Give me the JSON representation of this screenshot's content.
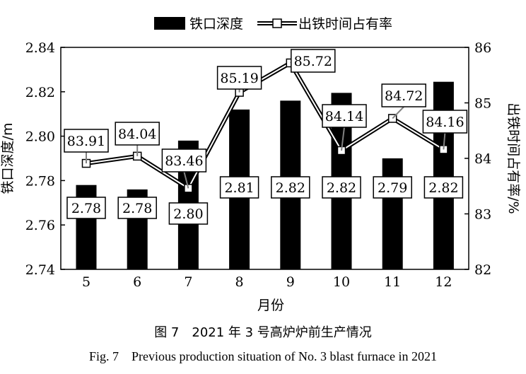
{
  "chart_data": {
    "type": "bar+line",
    "categories": [
      "5",
      "6",
      "7",
      "8",
      "9",
      "10",
      "11",
      "12"
    ],
    "bar_series": {
      "name": "铁口深度",
      "values": [
        2.778,
        2.776,
        2.798,
        2.812,
        2.816,
        2.8195,
        2.79,
        2.8245
      ],
      "labels": [
        "2.78",
        "2.78",
        "2.80",
        "2.81",
        "2.82",
        "2.82",
        "2.79",
        "2.82"
      ],
      "color": "#000000"
    },
    "line_series": {
      "name": "出铁时间占有率",
      "values": [
        83.91,
        84.04,
        83.46,
        85.19,
        85.72,
        84.14,
        84.72,
        84.16
      ],
      "labels": [
        "83.91",
        "84.04",
        "83.46",
        "85.19",
        "85.72",
        "84.14",
        "84.72",
        "84.16"
      ]
    },
    "xlabel": "月份",
    "ylabel_left": "铁口深度/m",
    "ylabel_right": "出铁时间占有率/%",
    "ylim_left": [
      2.74,
      2.84
    ],
    "yticks_left": [
      "2.74",
      "2.76",
      "2.78",
      "2.80",
      "2.82",
      "2.84"
    ],
    "ylim_right": [
      82,
      86
    ],
    "yticks_right": [
      "82",
      "83",
      "84",
      "85",
      "86"
    ],
    "legend_position": "top-center"
  },
  "caption": {
    "chinese": "图 7　2021 年 3 号高炉炉前生产情况",
    "english": "Fig. 7　Previous production situation of No. 3 blast furnace in 2021"
  }
}
